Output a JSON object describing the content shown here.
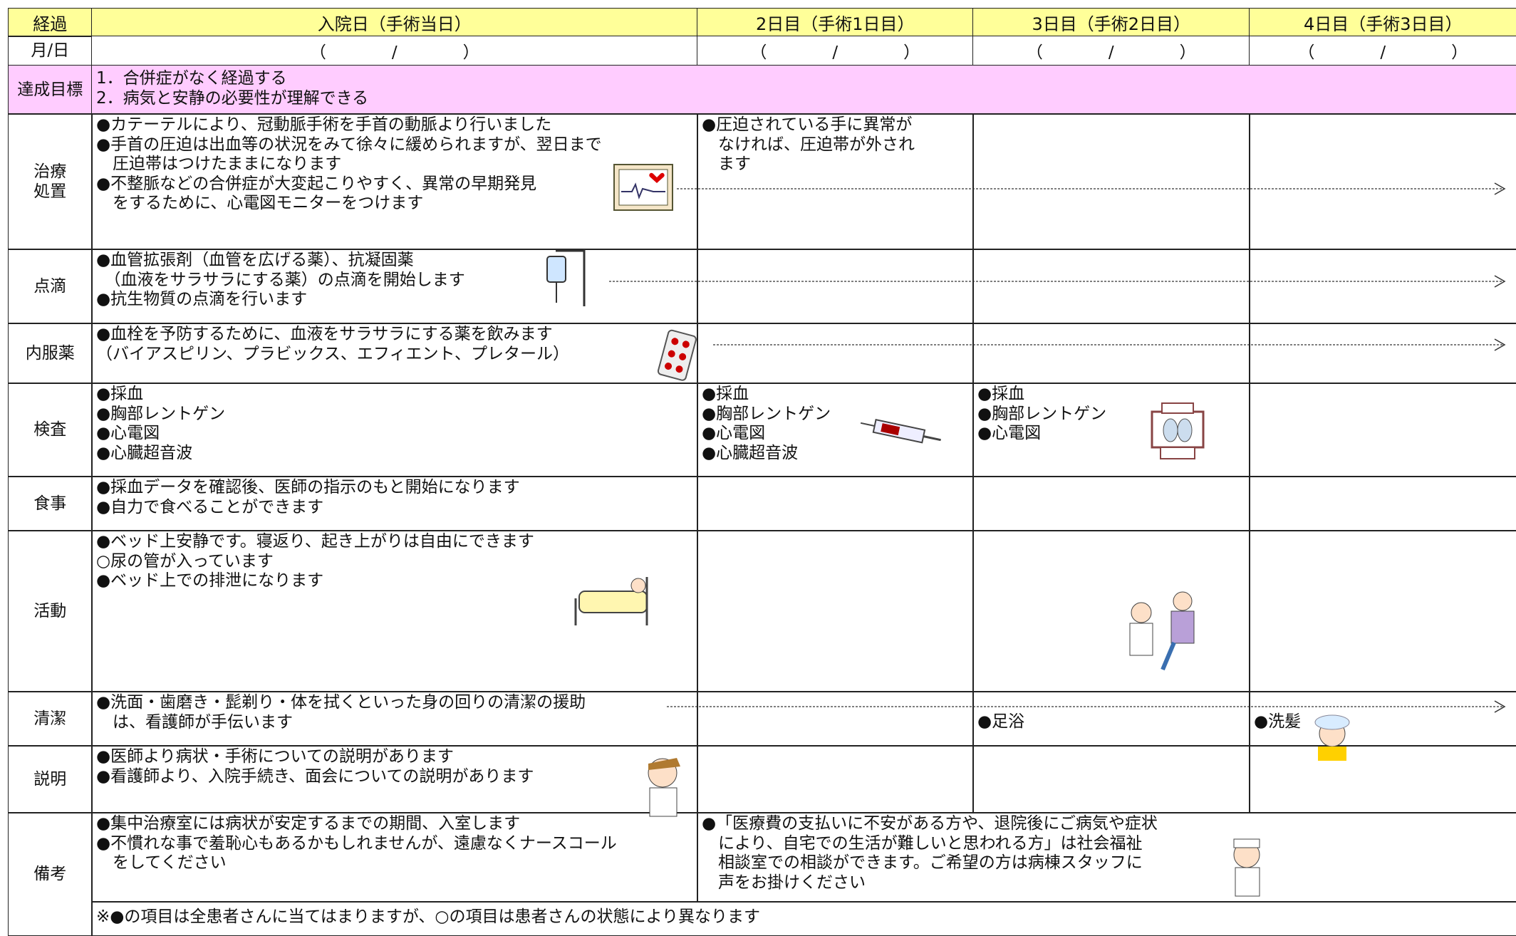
{
  "header": {
    "row_label": "経過",
    "days": [
      "入院日（手術当日）",
      "2日目（手術1日目）",
      "3日目（手術2日目）",
      "4日目（手術3日目）"
    ]
  },
  "date_row": {
    "label": "月/日",
    "cells": [
      "（　　　　/　　　　）",
      "（　　　　/　　　　）",
      "（　　　　/　　　　）",
      "（　　　　/　　　　）"
    ]
  },
  "goal": {
    "label": "達成目標",
    "items": [
      "1．合併症がなく経過する",
      "2．病気と安静の必要性が理解できる"
    ]
  },
  "rows": [
    {
      "label": [
        "治療",
        "処置"
      ],
      "cells": [
        [
          "●カテーテルにより、冠動脈手術を手首の動脈より行いました",
          "●手首の圧迫は出血等の状況をみて徐々に緩められますが、翌日まで",
          "　圧迫帯はつけたままになります",
          "●不整脈などの合併症が大変起こりやすく、異常の早期発見",
          "　をするために、心電図モニターをつけます"
        ],
        [
          "●圧迫されている手に異常が",
          "　なければ、圧迫帯が外され",
          "　ます"
        ],
        [],
        []
      ]
    },
    {
      "label": [
        "点滴"
      ],
      "cells": [
        [
          "●血管拡張剤（血管を広げる薬）、抗凝固薬",
          "　（血液をサラサラにする薬）の点滴を開始します",
          "●抗生物質の点滴を行います"
        ],
        [],
        [],
        []
      ]
    },
    {
      "label": [
        "内服薬"
      ],
      "cells": [
        [
          "●血栓を予防するために、血液をサラサラにする薬を飲みます",
          "（バイアスピリン、プラビックス、エフィエント、プレタール）"
        ],
        [],
        [],
        []
      ]
    },
    {
      "label": [
        "検査"
      ],
      "cells": [
        [
          "●採血",
          "●胸部レントゲン",
          "●心電図",
          "●心臓超音波"
        ],
        [
          "●採血",
          "●胸部レントゲン",
          "●心電図",
          "●心臓超音波"
        ],
        [
          "●採血",
          "●胸部レントゲン",
          "●心電図"
        ],
        []
      ]
    },
    {
      "label": [
        "食事"
      ],
      "cells": [
        [
          "●採血データを確認後、医師の指示のもと開始になります",
          "●自力で食べることができます"
        ],
        [],
        [],
        []
      ]
    },
    {
      "label": [
        "活動"
      ],
      "cells": [
        [
          "●ベッド上安静です。寝返り、起き上がりは自由にできます",
          "○尿の管が入っています",
          "●ベッド上での排泄になります"
        ],
        [],
        [],
        []
      ]
    },
    {
      "label": [
        "清潔"
      ],
      "cells": [
        [
          "●洗面・歯磨き・髭剃り・体を拭くといった身の回りの清潔の援助",
          "　は、看護師が手伝います"
        ],
        [],
        [
          "●足浴"
        ],
        [
          "●洗髪"
        ]
      ]
    },
    {
      "label": [
        "説明"
      ],
      "cells": [
        [
          "●医師より病状・手術についての説明があります",
          "●看護師より、入院手続き、面会についての説明があります"
        ],
        [],
        [],
        []
      ]
    },
    {
      "label": [
        "備考"
      ],
      "cells": [
        [
          "●集中治療室には病状が安定するまでの期間、入室します",
          "●不慣れな事で羞恥心もあるかもしれませんが、遠慮なくナースコール",
          "　をしてください"
        ],
        [
          "●「医療費の支払いに不安がある方や、退院後にご病気や症状",
          "　により、自宅での生活が難しいと思われる方」は社会福祉",
          "　相談室での相談ができます。ご希望の方は病棟スタッフに",
          "　声をお掛けください"
        ]
      ]
    }
  ],
  "footnote": "※●の項目は全患者さんに当てはまりますが、○の項目は患者さんの状態により異なります"
}
